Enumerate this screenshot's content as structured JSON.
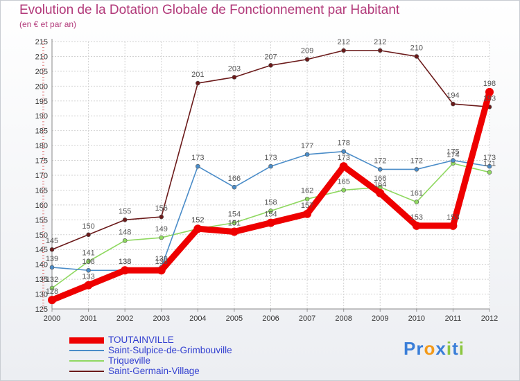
{
  "chart_data": {
    "type": "line",
    "title": "Evolution de la Dotation Globale de Fonctionnement par Habitant",
    "subtitle": "(en € et par an)",
    "x": [
      "2000",
      "2001",
      "2002",
      "2003",
      "2004",
      "2005",
      "2006",
      "2007",
      "2008",
      "2009",
      "2010",
      "2011",
      "2012"
    ],
    "ylim": [
      125,
      215
    ],
    "yticks": [
      125,
      130,
      135,
      140,
      145,
      150,
      155,
      160,
      165,
      170,
      175,
      180,
      185,
      190,
      195,
      200,
      205,
      210,
      215
    ],
    "grid": true,
    "legend_position": "bottom-left",
    "series": [
      {
        "name": "TOUTAINVILLE",
        "color": "#ee0000",
        "values": [
          128,
          133,
          138,
          138,
          152,
          151,
          154,
          157,
          173,
          164,
          153,
          153,
          198
        ]
      },
      {
        "name": "Saint-Sulpice-de-Grimbouville",
        "color": "#4a8cc8",
        "values": [
          139,
          138,
          138,
          139,
          173,
          166,
          173,
          177,
          178,
          172,
          172,
          175,
          173
        ]
      },
      {
        "name": "Triqueville",
        "color": "#8fd860",
        "values": [
          132,
          141,
          148,
          149,
          152,
          154,
          158,
          162,
          165,
          166,
          161,
          174,
          171
        ]
      },
      {
        "name": "Saint-Germain-Village",
        "color": "#6b1a1a",
        "values": [
          145,
          150,
          155,
          156,
          201,
          203,
          207,
          209,
          212,
          212,
          210,
          194,
          193
        ]
      }
    ]
  },
  "brand": {
    "letters": [
      "P",
      "r",
      "o",
      "x",
      "i",
      "t",
      "i"
    ],
    "colors": [
      "#3a7ed8",
      "#3a7ed8",
      "#f39a1a",
      "#3a7ed8",
      "#8cc63f",
      "#3a7ed8",
      "#8cc63f"
    ]
  }
}
